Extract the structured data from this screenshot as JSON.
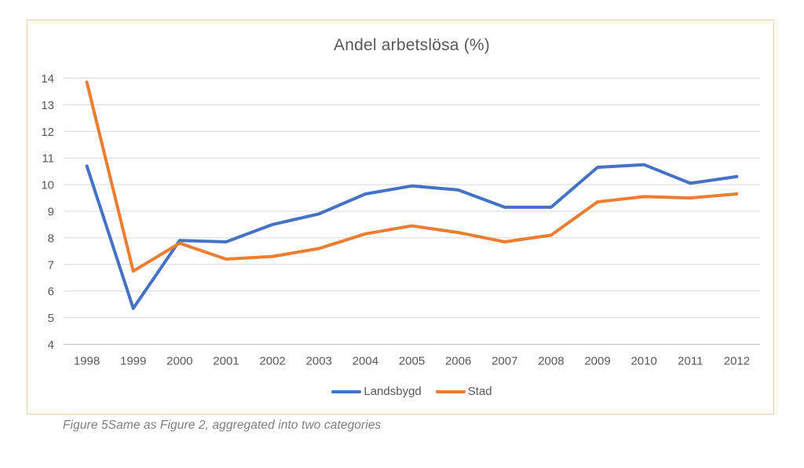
{
  "caption": "Figure 5Same as Figure 2, aggregated into two categories",
  "colors": {
    "chart_border": "#f5cba8",
    "gridline": "#d9d9d9",
    "axis_line": "#bfbfbf",
    "text": "#595959",
    "caption_text": "#7f7f7f",
    "series_landsbygd": "#4472C4",
    "series_stad": "#ED7D31"
  },
  "chart_data": {
    "type": "line",
    "title": "Andel arbetslösa (%)",
    "x": [
      "1998",
      "1999",
      "2000",
      "2001",
      "2002",
      "2003",
      "2004",
      "2005",
      "2006",
      "2007",
      "2008",
      "2009",
      "2010",
      "2011",
      "2012"
    ],
    "series": [
      {
        "name": "Landsbygd",
        "color": "#4472C4",
        "values": [
          10.7,
          5.35,
          7.9,
          7.85,
          8.5,
          8.9,
          9.65,
          9.95,
          9.8,
          9.15,
          9.15,
          10.65,
          10.75,
          10.05,
          10.3
        ]
      },
      {
        "name": "Stad",
        "color": "#ED7D31",
        "values": [
          13.85,
          6.75,
          7.8,
          7.2,
          7.3,
          7.6,
          8.15,
          8.45,
          8.2,
          7.85,
          8.1,
          9.35,
          9.55,
          9.5,
          9.65
        ]
      }
    ],
    "xlabel": "",
    "ylabel": "",
    "ylim": [
      4,
      14
    ],
    "ytick_step": 1,
    "grid": true,
    "legend_position": "bottom"
  }
}
